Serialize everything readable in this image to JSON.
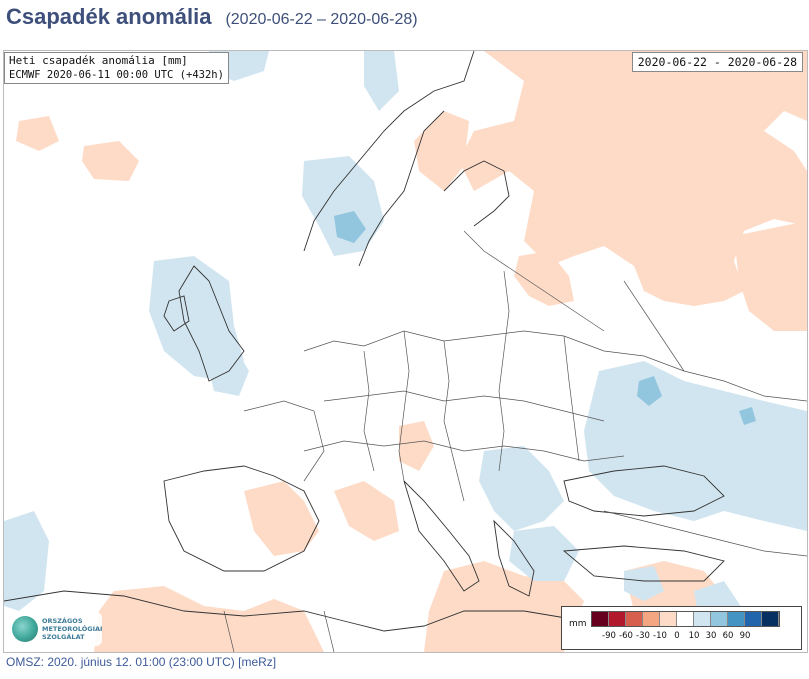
{
  "header": {
    "title": "Csapadék anomália",
    "period": "(2020-06-22 – 2020-06-28)"
  },
  "map": {
    "info_line1": "Heti csapadék anomália [mm]",
    "info_line2": "ECMWF 2020-06-11 00:00 UTC (+432h)",
    "date_range": "2020-06-22 - 2020-06-28"
  },
  "legend": {
    "unit": "mm",
    "colors": [
      "#67001f",
      "#b2182b",
      "#d6604d",
      "#f4a582",
      "#fddbc7",
      "#ffffff",
      "#d1e5f0",
      "#92c5de",
      "#4393c3",
      "#2166ac",
      "#053061"
    ],
    "ticks": [
      "-90",
      "-60",
      "-30",
      "-10",
      "0",
      "10",
      "30",
      "60",
      "90"
    ]
  },
  "logo": {
    "line1": "ORSZÁGOS",
    "line2": "METEOROLÓGIAI",
    "line3": "SZOLGÁLAT"
  },
  "footer": {
    "text": "OMSZ: 2020. június 12. 01:00 (23:00  UTC)  [meRz]"
  }
}
